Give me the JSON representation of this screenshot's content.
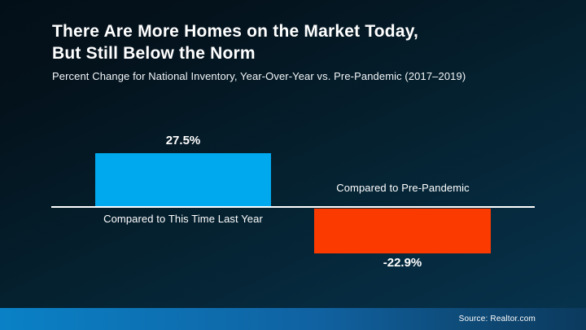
{
  "slide": {
    "title_line1": "There Are More Homes on the Market Today,",
    "title_line2": "But Still Below the Norm",
    "subtitle": "Percent Change for National Inventory, Year-Over-Year vs. Pre-Pandemic (2017–2019)",
    "source": "Source: Realtor.com"
  },
  "colors": {
    "positive_bar": "#00a9ee",
    "negative_bar": "#fb3a00",
    "axis_line": "#ffffff",
    "background_top": "#030f18",
    "background_bottom": "#07344f",
    "footer_gradient_left": "#0a81c6",
    "footer_gradient_right": "#0c3a5e"
  },
  "chart_data": {
    "type": "bar",
    "title": "Percent Change for National Inventory, Year-Over-Year vs. Pre-Pandemic (2017–2019)",
    "categories": [
      "Compared to This Time Last Year",
      "Compared to Pre-Pandemic"
    ],
    "values": [
      27.5,
      -22.9
    ],
    "value_labels": [
      "27.5%",
      "-22.9%"
    ],
    "unit": "%",
    "baseline": 0,
    "orientation": "vertical",
    "legend": "none",
    "grid": "off",
    "axis_style": "single horizontal zero-baseline line, no ticks or tick labels"
  }
}
